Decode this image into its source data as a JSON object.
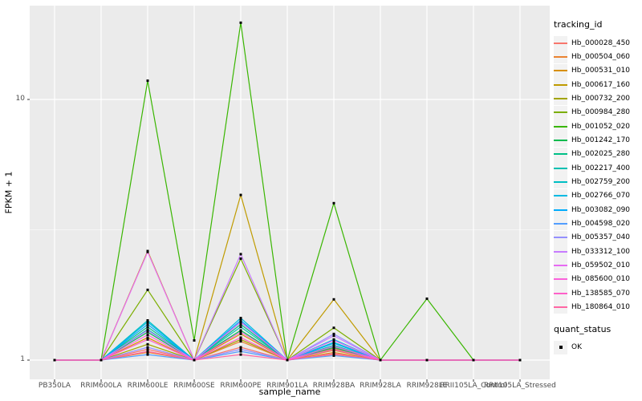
{
  "figure": {
    "background": "#FFFFFF",
    "panel_background": "#EBEBEB",
    "grid_color": "#FFFFFF",
    "tick_mark_color": "#333333",
    "tick_label_color": "#4D4D4D",
    "point_color": "#000000",
    "legend_key_fill": "#F2F2F2"
  },
  "chart_data": {
    "type": "line",
    "title": "",
    "xlabel": "sample_name",
    "ylabel": "FPKM + 1",
    "y_scale": "log10",
    "grid": true,
    "legend_position": "right",
    "point_shape": "filled-square",
    "y_tick_labels": [
      "1",
      "10"
    ],
    "y_tick_values": [
      1,
      10
    ],
    "y_minor_tick_values": [
      3.1623
    ],
    "ylim": [
      0.84,
      22.9
    ],
    "categories": [
      "PB350LA",
      "RRIM600LA",
      "RRIM600LE",
      "RRIM600SE",
      "RRIM600PE",
      "RRIM901LA",
      "RRIM928BA",
      "RRIM928LA",
      "RRIM928LE",
      "RRII105LA_Control",
      "RRII105LA_Stressed"
    ],
    "series": [
      {
        "name": "Hb_000028_450",
        "color": "#F8766D",
        "values": [
          1,
          1,
          1.1,
          1,
          1.12,
          1,
          1.05,
          1,
          1,
          1,
          1
        ]
      },
      {
        "name": "Hb_000504_060",
        "color": "#EA8331",
        "values": [
          1,
          1,
          1.07,
          1,
          1.18,
          1,
          1.09,
          1,
          1,
          1,
          1
        ]
      },
      {
        "name": "Hb_000531_010",
        "color": "#D89000",
        "values": [
          1,
          1,
          1.22,
          1,
          1.26,
          1,
          1.07,
          1,
          1,
          1,
          1
        ]
      },
      {
        "name": "Hb_000617_160",
        "color": "#C09B00",
        "values": [
          1,
          1,
          2.62,
          1,
          4.3,
          1,
          1.71,
          1,
          1,
          1,
          1
        ]
      },
      {
        "name": "Hb_000732_200",
        "color": "#A3A500",
        "values": [
          1,
          1,
          1.15,
          1,
          1.2,
          1,
          1.11,
          1,
          1,
          1,
          1
        ]
      },
      {
        "name": "Hb_000984_280",
        "color": "#7CAE00",
        "values": [
          1,
          1,
          1.86,
          1,
          2.45,
          1,
          1.33,
          1,
          1,
          1,
          1
        ]
      },
      {
        "name": "Hb_001052_020",
        "color": "#39B600",
        "values": [
          1,
          1,
          11.8,
          1.19,
          19.7,
          1,
          4.0,
          1,
          1.72,
          1,
          1
        ]
      },
      {
        "name": "Hb_001242_170",
        "color": "#00BB4E",
        "values": [
          1,
          1,
          1.28,
          1,
          1.3,
          1,
          1.1,
          1,
          1,
          1,
          1
        ]
      },
      {
        "name": "Hb_002025_280",
        "color": "#00C087",
        "values": [
          1,
          1,
          1.34,
          1,
          1.37,
          1,
          1.12,
          1,
          1,
          1,
          1
        ]
      },
      {
        "name": "Hb_002217_400",
        "color": "#00C0B2",
        "values": [
          1,
          1,
          1.31,
          1,
          1.34,
          1,
          1.14,
          1,
          1,
          1,
          1
        ]
      },
      {
        "name": "Hb_002759_200",
        "color": "#00BFC4",
        "values": [
          1,
          1,
          1.42,
          1,
          1.4,
          1,
          1.17,
          1,
          1,
          1,
          1
        ]
      },
      {
        "name": "Hb_002766_070",
        "color": "#00BAE3",
        "values": [
          1,
          1,
          1.4,
          1,
          1.45,
          1,
          1.2,
          1,
          1,
          1,
          1
        ]
      },
      {
        "name": "Hb_003082_090",
        "color": "#00ACFC",
        "values": [
          1,
          1,
          1.37,
          1,
          1.42,
          1,
          1.16,
          1,
          1,
          1,
          1
        ]
      },
      {
        "name": "Hb_004598_020",
        "color": "#529EFF",
        "values": [
          1,
          1,
          1.05,
          1,
          1.08,
          1,
          1.04,
          1,
          1,
          1,
          1
        ]
      },
      {
        "name": "Hb_005357_040",
        "color": "#9590FF",
        "values": [
          1,
          1,
          1.12,
          1,
          1.1,
          1,
          1.26,
          1,
          1,
          1,
          1
        ]
      },
      {
        "name": "Hb_033312_100",
        "color": "#C77CFF",
        "values": [
          1,
          1,
          1.3,
          1,
          2.55,
          1,
          1.24,
          1,
          1,
          1,
          1
        ]
      },
      {
        "name": "Hb_059502_010",
        "color": "#E76BF3",
        "values": [
          1,
          1,
          2.6,
          1,
          1.4,
          1,
          1.19,
          1,
          1,
          1,
          1
        ]
      },
      {
        "name": "Hb_085600_010",
        "color": "#FA62DB",
        "values": [
          1,
          1,
          1.25,
          1,
          1.28,
          1,
          1.13,
          1,
          1,
          1,
          1
        ]
      },
      {
        "name": "Hb_138585_070",
        "color": "#FF61C9",
        "values": [
          1,
          1,
          1.2,
          1,
          1.22,
          1,
          1.1,
          1,
          1,
          1,
          1
        ]
      },
      {
        "name": "Hb_180864_010",
        "color": "#FF67A4",
        "values": [
          1,
          1,
          1.08,
          1,
          1.05,
          1,
          1.06,
          1,
          1,
          1,
          1
        ]
      }
    ]
  },
  "legend": {
    "tracking_id_title": "tracking_id",
    "quant_status_title": "quant_status",
    "quant_status_items": [
      {
        "label": "OK",
        "shape": "filled-square",
        "color": "#000000"
      }
    ]
  }
}
